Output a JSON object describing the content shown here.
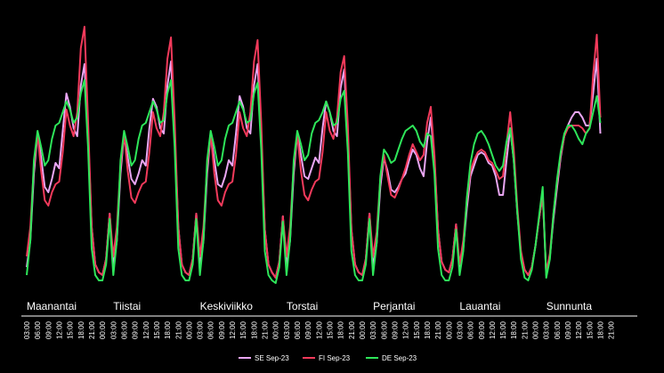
{
  "chart_data": {
    "type": "line",
    "title": "",
    "xlabel": "",
    "ylabel": "",
    "days": [
      "Maanantai",
      "Tiistai",
      "Keskiviikko",
      "Torstai",
      "Perjantai",
      "Lauantai",
      "Sunnunta"
    ],
    "x_tick_labels": [
      "03:00",
      "06:00",
      "09:00",
      "12:00",
      "15:00",
      "18:00",
      "21:00",
      "00:00"
    ],
    "hours_per_point": 1,
    "y_axis": "hidden",
    "legend": {
      "placement": "bottom-center"
    },
    "series": [
      {
        "name": "SE Sep-23",
        "color": "#e9a6f3",
        "values": [
          [
            20,
            40,
            90,
            120,
            102,
            80,
            76,
            86,
            98,
            94,
            122,
            150,
            140,
            124,
            118,
            156,
            172,
            120,
            50,
            22,
            16,
            14,
            26,
            60
          ],
          [
            20,
            40,
            90,
            120,
            102,
            86,
            82,
            90,
            100,
            96,
            124,
            146,
            140,
            124,
            120,
            156,
            174,
            120,
            50,
            22,
            16,
            14,
            26,
            60
          ],
          [
            20,
            40,
            90,
            120,
            100,
            82,
            80,
            88,
            100,
            96,
            120,
            148,
            140,
            124,
            120,
            156,
            172,
            118,
            48,
            22,
            16,
            12,
            24,
            58
          ],
          [
            20,
            40,
            90,
            120,
            104,
            88,
            86,
            94,
            102,
            98,
            124,
            144,
            136,
            122,
            118,
            154,
            168,
            116,
            48,
            22,
            16,
            14,
            26,
            60
          ],
          [
            20,
            38,
            80,
            102,
            92,
            78,
            76,
            80,
            86,
            90,
            100,
            108,
            104,
            94,
            88,
            114,
            132,
            100,
            48,
            24,
            18,
            16,
            26,
            52
          ],
          [
            18,
            34,
            64,
            88,
            96,
            104,
            106,
            104,
            98,
            96,
            88,
            74,
            74,
            100,
            124,
            100,
            60,
            30,
            18,
            14,
            20,
            36,
            56,
            74
          ],
          [
            14,
            28,
            56,
            80,
            102,
            118,
            126,
            132,
            136,
            136,
            132,
            126,
            126,
            150,
            176,
            120,
            0,
            0,
            0,
            0,
            0,
            0,
            0,
            0
          ]
        ]
      },
      {
        "name": "FI Sep-23",
        "color": "#f23a5b",
        "values": [
          [
            28,
            50,
            96,
            120,
            92,
            70,
            66,
            76,
            82,
            84,
            106,
            138,
            126,
            118,
            136,
            184,
            200,
            130,
            50,
            22,
            16,
            14,
            26,
            60
          ],
          [
            28,
            50,
            96,
            120,
            92,
            72,
            68,
            76,
            82,
            84,
            106,
            136,
            124,
            118,
            136,
            176,
            192,
            130,
            50,
            22,
            16,
            14,
            26,
            60
          ],
          [
            28,
            50,
            96,
            120,
            90,
            70,
            66,
            76,
            82,
            84,
            104,
            136,
            124,
            118,
            136,
            174,
            190,
            128,
            48,
            22,
            16,
            12,
            24,
            58
          ],
          [
            28,
            50,
            96,
            120,
            92,
            74,
            70,
            78,
            84,
            86,
            106,
            136,
            122,
            116,
            132,
            166,
            178,
            126,
            48,
            22,
            16,
            14,
            26,
            60
          ],
          [
            28,
            46,
            86,
            104,
            88,
            74,
            72,
            78,
            86,
            94,
            104,
            112,
            106,
            100,
            104,
            128,
            140,
            104,
            48,
            24,
            18,
            16,
            26,
            52
          ],
          [
            22,
            40,
            70,
            92,
            100,
            106,
            108,
            106,
            100,
            98,
            92,
            86,
            88,
            112,
            136,
            108,
            64,
            32,
            18,
            14,
            20,
            36,
            56,
            74
          ],
          [
            16,
            30,
            60,
            84,
            104,
            118,
            124,
            126,
            126,
            126,
            124,
            120,
            124,
            164,
            194,
            132,
            0,
            0,
            0,
            0,
            0,
            0,
            0,
            0
          ]
        ]
      },
      {
        "name": "DE Sep-23",
        "color": "#2ee65a",
        "values": [
          [
            14,
            40,
            100,
            122,
            110,
            96,
            100,
            116,
            126,
            128,
            136,
            144,
            138,
            128,
            132,
            150,
            160,
            110,
            34,
            14,
            10,
            10,
            22,
            56
          ],
          [
            14,
            40,
            100,
            122,
            110,
            96,
            100,
            116,
            126,
            128,
            136,
            144,
            138,
            128,
            130,
            150,
            160,
            110,
            34,
            14,
            10,
            10,
            22,
            56
          ],
          [
            14,
            40,
            100,
            122,
            110,
            96,
            100,
            116,
            126,
            128,
            136,
            144,
            138,
            128,
            130,
            150,
            158,
            108,
            32,
            14,
            10,
            8,
            20,
            54
          ],
          [
            14,
            40,
            100,
            122,
            112,
            100,
            104,
            120,
            128,
            130,
            136,
            144,
            136,
            126,
            128,
            146,
            152,
            106,
            32,
            14,
            10,
            10,
            22,
            56
          ],
          [
            14,
            38,
            88,
            108,
            104,
            98,
            100,
            108,
            116,
            122,
            124,
            126,
            122,
            114,
            110,
            120,
            118,
            90,
            34,
            14,
            10,
            10,
            20,
            48
          ],
          [
            14,
            32,
            72,
            98,
            112,
            120,
            122,
            118,
            112,
            104,
            96,
            92,
            96,
            114,
            124,
            100,
            60,
            26,
            12,
            10,
            18,
            36,
            58,
            80
          ],
          [
            12,
            26,
            60,
            86,
            106,
            120,
            126,
            126,
            122,
            116,
            112,
            120,
            124,
            136,
            148,
            128,
            0,
            0,
            0,
            0,
            0,
            0,
            0,
            0
          ]
        ]
      }
    ]
  }
}
